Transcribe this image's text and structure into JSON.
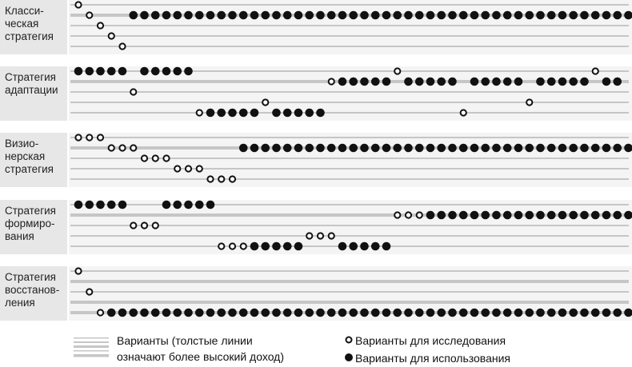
{
  "groups": [
    {
      "label": "Класси-\nческая\nстратегия",
      "rows": [
        {
          "thick": false,
          "pattern": "o"
        },
        {
          "thick": true,
          "pattern": ".o...##############################################"
        },
        {
          "thick": false,
          "pattern": "..o"
        },
        {
          "thick": false,
          "pattern": "...o"
        },
        {
          "thick": false,
          "pattern": "....o"
        }
      ]
    },
    {
      "label": "Стратегия\nадаптации",
      "rows": [
        {
          "thick": false,
          "pattern": "#####.#####..................o.................o"
        },
        {
          "thick": true,
          "pattern": ".......................o#####.#####.#####.#####.##"
        },
        {
          "thick": false,
          "pattern": ".....o"
        },
        {
          "thick": false,
          "pattern": ".................o.......................o"
        },
        {
          "thick": false,
          "pattern": "...........o#####.#####............o"
        }
      ]
    },
    {
      "label": "Визио-\nнерская\nстратегия",
      "rows": [
        {
          "thick": false,
          "pattern": "ooo"
        },
        {
          "thick": true,
          "pattern": "...ooo.........####################################"
        },
        {
          "thick": false,
          "pattern": "......ooo"
        },
        {
          "thick": false,
          "pattern": ".........ooo"
        },
        {
          "thick": false,
          "pattern": "............ooo"
        }
      ]
    },
    {
      "label": "Стратегия\nформиро-\nвания",
      "rows": [
        {
          "thick": false,
          "pattern": "#####...#####"
        },
        {
          "thick": true,
          "pattern": ".............................ooo###################"
        },
        {
          "thick": false,
          "pattern": ".....ooo"
        },
        {
          "thick": false,
          "pattern": ".....................ooo"
        },
        {
          "thick": false,
          "pattern": ".............ooo#####...#####"
        }
      ]
    },
    {
      "label": "Стратегия\nвосстанов-\nления",
      "rows": [
        {
          "thick": false,
          "pattern": "o"
        },
        {
          "thick": true,
          "pattern": ""
        },
        {
          "thick": false,
          "pattern": ".o"
        },
        {
          "thick": true,
          "pattern": ""
        },
        {
          "thick": true,
          "pattern": "..o################################################"
        }
      ]
    }
  ],
  "legend": {
    "lines_label": "Варианты (толстые линии\nозначают более высокий доход)",
    "explore_label": "Варианты для исследования",
    "exploit_label": "Варианты для использования"
  },
  "colors": {
    "line": "#c6c6c6",
    "dot": "#111111",
    "label_bg": "#e7e7e7",
    "plot_bg": "#f4f4f4"
  }
}
